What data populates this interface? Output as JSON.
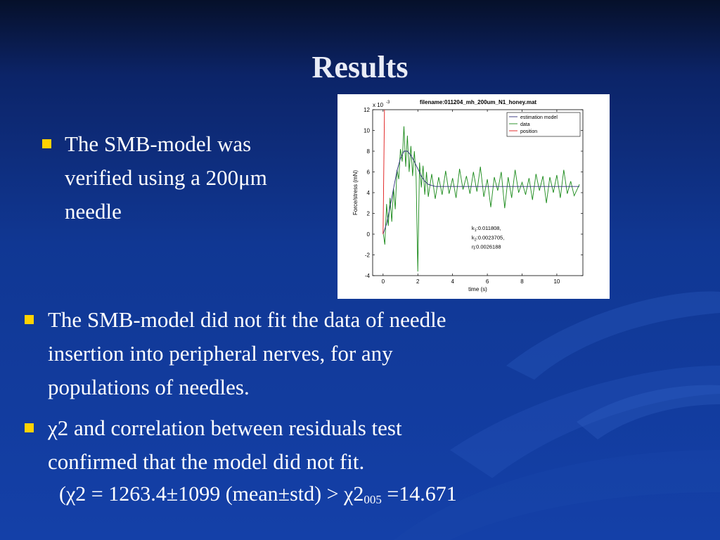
{
  "slide": {
    "title": "Results",
    "bullet1": {
      "lines": [
        "The SMB-model was",
        "verified using a 200μm",
        "needle"
      ]
    },
    "bullet2": {
      "lines": [
        "The SMB-model did not fit the data of needle",
        "insertion into peripheral nerves, for any",
        "populations of needles."
      ]
    },
    "bullet3": {
      "lines": [
        "χ2 and correlation between residuals test",
        "confirmed that the model did not fit."
      ]
    },
    "sub": {
      "pre": "(χ2 = 1263.4±1099 (mean±std) > χ2",
      "subscript": "005",
      "post": " =14.671"
    }
  },
  "colors": {
    "accent_bullet": "#ffd200",
    "title": "#e9ecf6",
    "estimation": "#2c2c7a",
    "data": "#1a8a1a",
    "position": "#e01818"
  },
  "chart_data": {
    "type": "line",
    "title": "filename:011204_mh_200um_N1_honey.mat",
    "xlabel": "time (s)",
    "ylabel": "Force/stress (mN)",
    "y_multiplier": "x 10",
    "y_multiplier_exp": "-3",
    "xlim": [
      -0.6,
      11.5
    ],
    "ylim": [
      -4,
      12
    ],
    "xticks": [
      0,
      2,
      4,
      6,
      8,
      10
    ],
    "yticks": [
      -4,
      -2,
      0,
      2,
      4,
      6,
      8,
      10,
      12
    ],
    "legend_position": "top-right",
    "series": [
      {
        "name": "estimation model",
        "color": "#2c2c7a",
        "x": [
          0,
          0.2,
          0.4,
          0.6,
          0.8,
          1.0,
          1.2,
          1.4,
          1.6,
          1.8,
          2.0,
          2.2,
          2.4,
          2.6,
          2.8,
          3.0,
          3.5,
          4,
          5,
          6,
          7,
          8,
          9,
          10,
          11.3
        ],
        "y": [
          0,
          1.0,
          2.6,
          4.4,
          6.1,
          7.3,
          8.0,
          8.0,
          7.6,
          7.0,
          6.3,
          5.6,
          5.1,
          4.8,
          4.7,
          4.6,
          4.6,
          4.6,
          4.6,
          4.6,
          4.6,
          4.6,
          4.6,
          4.6,
          4.6
        ]
      },
      {
        "name": "data",
        "color": "#1a8a1a",
        "x": [
          0,
          0.1,
          0.2,
          0.3,
          0.4,
          0.5,
          0.6,
          0.7,
          0.8,
          0.9,
          1.0,
          1.1,
          1.2,
          1.3,
          1.4,
          1.5,
          1.6,
          1.7,
          1.8,
          1.9,
          2.0,
          2.1,
          2.2,
          2.3,
          2.4,
          2.5,
          2.6,
          2.8,
          3.0,
          3.2,
          3.4,
          3.6,
          3.8,
          4.0,
          4.2,
          4.4,
          4.6,
          4.8,
          5.0,
          5.2,
          5.4,
          5.6,
          5.8,
          6.0,
          6.2,
          6.4,
          6.6,
          6.8,
          7.0,
          7.2,
          7.4,
          7.6,
          7.8,
          8.0,
          8.2,
          8.4,
          8.6,
          8.8,
          9.0,
          9.2,
          9.4,
          9.6,
          9.8,
          10.0,
          10.2,
          10.4,
          10.6,
          10.8,
          11.0,
          11.3
        ],
        "y": [
          0.2,
          -1.0,
          2.9,
          0.8,
          3.5,
          1.2,
          4.4,
          2.4,
          6.2,
          5.3,
          8.2,
          7.0,
          10.4,
          6.5,
          9.5,
          6.0,
          8.5,
          5.6,
          8.0,
          5.5,
          -3.6,
          6.9,
          4.5,
          6.6,
          3.8,
          6.0,
          3.6,
          5.8,
          3.4,
          5.5,
          3.8,
          6.1,
          3.9,
          5.4,
          3.5,
          6.3,
          4.3,
          5.6,
          3.9,
          6.0,
          4.1,
          6.5,
          3.6,
          5.3,
          2.6,
          5.5,
          4.2,
          6.0,
          2.5,
          5.5,
          3.5,
          6.2,
          4.0,
          5.0,
          3.8,
          5.4,
          3.3,
          5.8,
          4.2,
          5.6,
          3.0,
          5.5,
          4.0,
          5.7,
          3.5,
          6.2,
          3.9,
          5.1,
          3.7,
          4.8
        ]
      },
      {
        "name": "position",
        "color": "#e01818",
        "x": [
          0,
          0.08
        ],
        "y": [
          0,
          12
        ]
      }
    ],
    "annotations": [
      {
        "x": 5.1,
        "y": 0.4,
        "label": "k",
        "sub": "1",
        "value": ":0.011808,"
      },
      {
        "x": 5.1,
        "y": -0.5,
        "label": "k",
        "sub": "2",
        "value": ":0.0023705,"
      },
      {
        "x": 5.1,
        "y": -1.4,
        "label": "η",
        "sub": "",
        "value": ":0.0026188"
      }
    ]
  }
}
